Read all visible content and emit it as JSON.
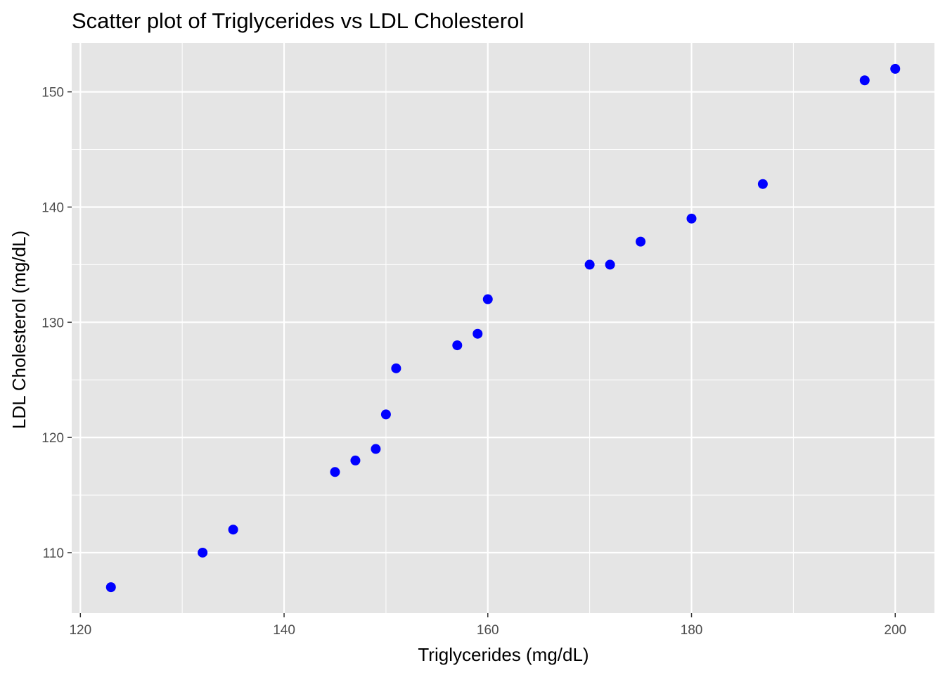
{
  "chart_data": {
    "type": "scatter",
    "title": "Scatter plot of Triglycerides vs LDL Cholesterol",
    "xlabel": "Triglycerides (mg/dL)",
    "ylabel": "LDL Cholesterol (mg/dL)",
    "xlim": [
      119.15,
      203.85
    ],
    "ylim": [
      104.75,
      154.25
    ],
    "x_ticks": [
      120,
      140,
      160,
      180,
      200
    ],
    "y_ticks": [
      110,
      120,
      130,
      140,
      150
    ],
    "x_minor": [
      130,
      150,
      170,
      190
    ],
    "y_minor": [
      115,
      125,
      135,
      145
    ],
    "grid": true,
    "legend": "none",
    "colors": {
      "point": "#0000ff",
      "panel": "#e5e5e5",
      "grid": "#ffffff",
      "tick": "#333333"
    },
    "series": [
      {
        "x": [
          123,
          132,
          135,
          145,
          147,
          149,
          150,
          151,
          157,
          159,
          160,
          170,
          172,
          175,
          180,
          187,
          197,
          200
        ],
        "y": [
          107,
          110,
          112,
          117,
          118,
          119,
          122,
          126,
          128,
          129,
          132,
          135,
          135,
          137,
          139,
          142,
          151,
          152
        ]
      }
    ]
  }
}
